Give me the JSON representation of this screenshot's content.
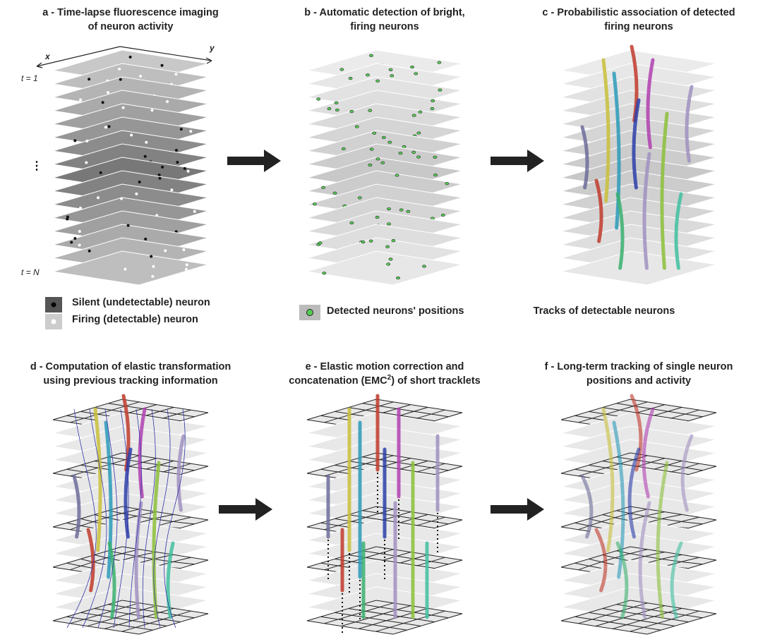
{
  "panels": [
    {
      "title": [
        "a - Time-lapse fluorescence imaging",
        "of neuron activity"
      ]
    },
    {
      "title": [
        "b - Automatic detection of bright,",
        "firing neurons"
      ]
    },
    {
      "title": [
        "c - Probabilistic association of detected",
        "firing neurons"
      ]
    },
    {
      "title": [
        "d - Computation of elastic transformation",
        "using previous tracking information"
      ]
    },
    {
      "title": [
        "e - Elastic motion correction and"
      ],
      "title_parts": [
        "concatenation (EMC",
        "2",
        ") of short tracklets"
      ]
    },
    {
      "title": [
        "f - Long-term tracking of single neuron",
        "positions and activity"
      ]
    }
  ],
  "labels": {
    "x": "x",
    "y": "y",
    "t_first": "t = 1",
    "ellipsis": "⋮",
    "t_last": "t = N"
  },
  "legend": {
    "silent": "Silent (undetectable) neuron",
    "firing": "Firing (detectable) neuron",
    "detected": "Detected neurons' positions",
    "tracks": "Tracks of detectable neurons"
  }
}
